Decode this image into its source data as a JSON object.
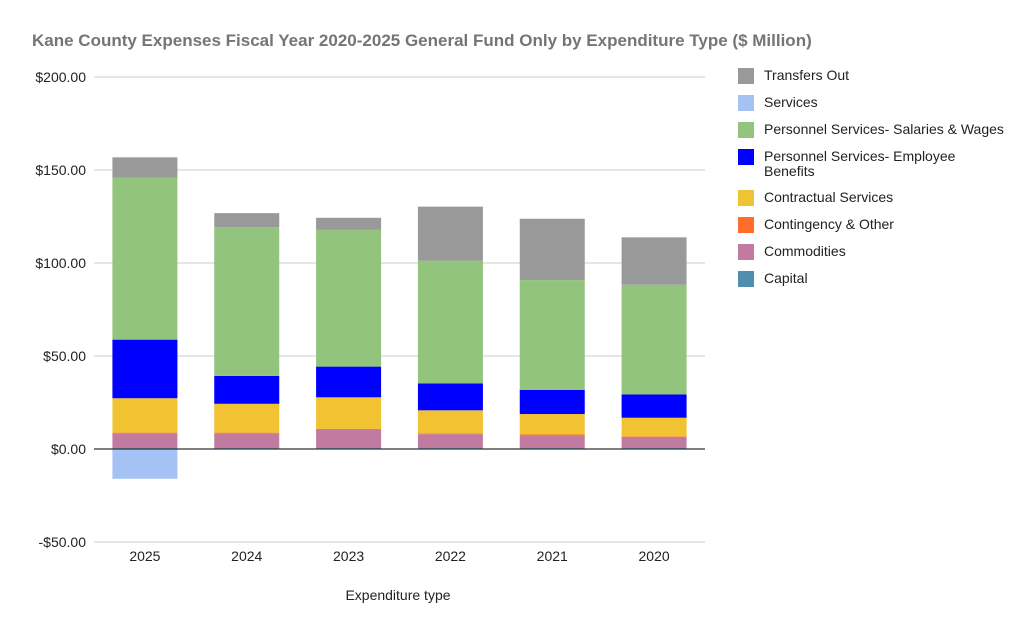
{
  "chart_data": {
    "type": "bar",
    "stacked": true,
    "title": "Kane County Expenses Fiscal Year 2020-2025 General Fund Only by Expenditure Type ($ Million)",
    "xlabel": "Expenditure type",
    "ylabel": "",
    "ylim": [
      -50,
      200
    ],
    "yticks": [
      -50,
      0,
      50,
      100,
      150,
      200
    ],
    "ytick_labels": [
      "-$50.00",
      "$0.00",
      "$50.00",
      "$100.00",
      "$150.00",
      "$200.00"
    ],
    "grid": true,
    "legend_position": "right",
    "categories": [
      "2025",
      "2024",
      "2023",
      "2022",
      "2021",
      "2020"
    ],
    "series": [
      {
        "name": "Capital",
        "color": "#4f8fad",
        "values": [
          0.5,
          0.5,
          0.5,
          0.5,
          0.5,
          0.5
        ]
      },
      {
        "name": "Commodities",
        "color": "#c27ba0",
        "values": [
          8,
          8,
          10,
          7.5,
          7,
          6
        ]
      },
      {
        "name": "Contingency & Other",
        "color": "#ff6d2d",
        "values": [
          0.3,
          0.3,
          0.3,
          0.3,
          0.3,
          0.3
        ]
      },
      {
        "name": "Contractual Services",
        "color": "#f1c232",
        "values": [
          18.5,
          15.5,
          17,
          12.5,
          11,
          10
        ]
      },
      {
        "name": "Personnel Services- Employee Benefits",
        "color": "#0000ff",
        "values": [
          31.5,
          15,
          16.5,
          14.5,
          13,
          12.5
        ]
      },
      {
        "name": "Personnel Services- Salaries & Wages",
        "color": "#93c47d",
        "values": [
          87,
          80,
          73.5,
          66,
          59,
          59
        ]
      },
      {
        "name": "Services",
        "color": "#a4c2f4",
        "values": [
          -16,
          0,
          0,
          0,
          0,
          0
        ]
      },
      {
        "name": "Transfers Out",
        "color": "#999999",
        "values": [
          11,
          7.5,
          6.5,
          29,
          33,
          25.5
        ]
      }
    ],
    "legend_order": [
      "Transfers Out",
      "Services",
      "Personnel Services- Salaries & Wages",
      "Personnel Services- Employee Benefits",
      "Contractual Services",
      "Contingency & Other",
      "Commodities",
      "Capital"
    ]
  }
}
